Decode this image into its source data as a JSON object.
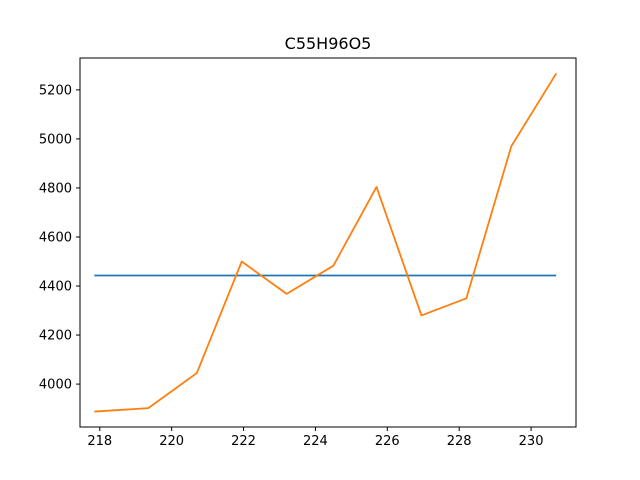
{
  "chart_data": {
    "type": "line",
    "title": "C55H96O5",
    "xlabel": "",
    "ylabel": "",
    "xlim": [
      217.45,
      231.25
    ],
    "ylim": [
      3825,
      5330
    ],
    "x_ticks": [
      218,
      220,
      222,
      224,
      226,
      228,
      230
    ],
    "y_ticks": [
      4000,
      4200,
      4400,
      4600,
      4800,
      5000,
      5200
    ],
    "grid": false,
    "series": [
      {
        "color": "#1f77b4",
        "x": [
          217.85,
          230.7
        ],
        "y": [
          4443,
          4443
        ]
      },
      {
        "color": "#ff7f0e",
        "x": [
          217.85,
          219.35,
          220.7,
          221.95,
          223.2,
          224.5,
          225.7,
          226.95,
          228.2,
          229.45,
          230.7
        ],
        "y": [
          3888,
          3902,
          4045,
          4500,
          4368,
          4483,
          4804,
          4280,
          4350,
          4970,
          5267
        ]
      }
    ]
  }
}
